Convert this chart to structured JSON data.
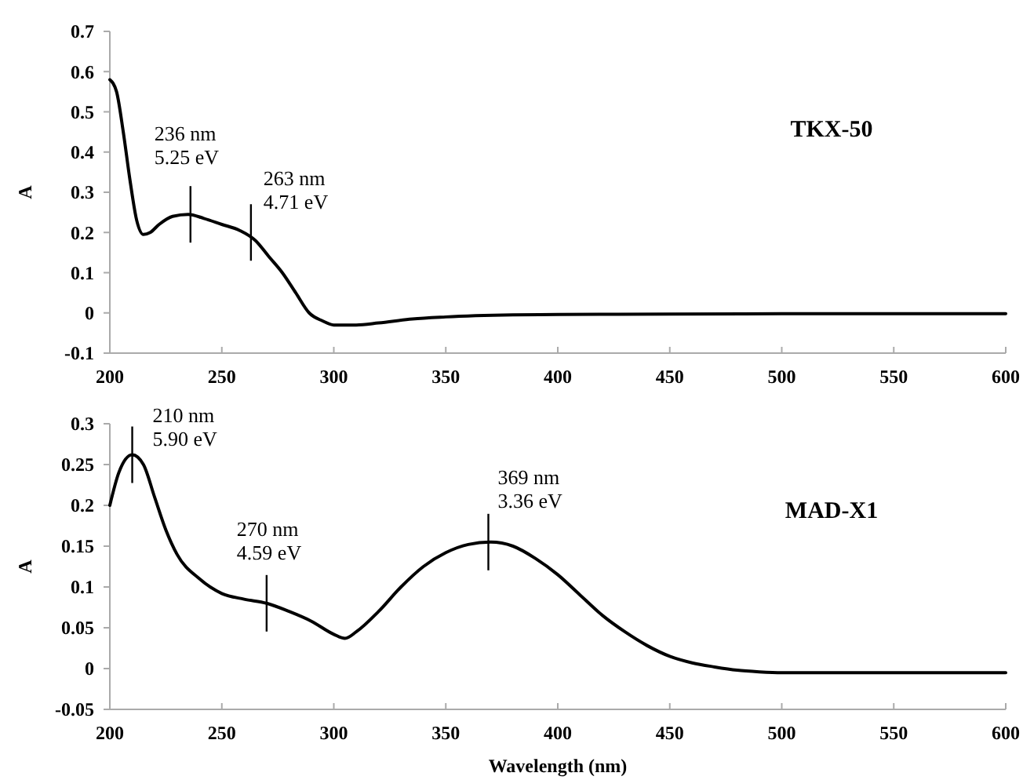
{
  "chart_data": [
    {
      "type": "line",
      "title": "TKX-50",
      "ylabel": "A",
      "xlim": [
        200,
        600
      ],
      "xticks": [
        200,
        250,
        300,
        350,
        400,
        450,
        500,
        550,
        600
      ],
      "ylim": [
        -0.1,
        0.7
      ],
      "yticks": [
        -0.1,
        0,
        0.1,
        0.2,
        0.3,
        0.4,
        0.5,
        0.6,
        0.7
      ],
      "grid": false,
      "marker": "none",
      "line_style": "solid",
      "series": [
        {
          "color": "#000000",
          "x": [
            200,
            203,
            206,
            209,
            212,
            215,
            218,
            222,
            228,
            235,
            242,
            250,
            258,
            265,
            271,
            277,
            283,
            289,
            295,
            300,
            310,
            320,
            335,
            350,
            380,
            400,
            450,
            500,
            550,
            600
          ],
          "values": [
            0.58,
            0.55,
            0.45,
            0.33,
            0.23,
            0.195,
            0.2,
            0.22,
            0.24,
            0.245,
            0.235,
            0.22,
            0.205,
            0.18,
            0.14,
            0.1,
            0.05,
            0,
            -0.02,
            -0.03,
            -0.03,
            -0.025,
            -0.015,
            -0.01,
            -0.005,
            -0.004,
            -0.003,
            -0.002,
            -0.002,
            -0.002
          ]
        }
      ],
      "annotations": [
        {
          "text": "236 nm\n5.25 eV",
          "x": 236,
          "y": 0.245
        },
        {
          "text": "263 nm\n4.71 eV",
          "x": 263,
          "y": 0.2
        }
      ]
    },
    {
      "type": "line",
      "title": "MAD-X1",
      "xlabel": "Wavelength (nm)",
      "ylabel": "A",
      "xlim": [
        200,
        600
      ],
      "xticks": [
        200,
        250,
        300,
        350,
        400,
        450,
        500,
        550,
        600
      ],
      "ylim": [
        -0.05,
        0.3
      ],
      "yticks": [
        -0.05,
        0,
        0.05,
        0.1,
        0.15,
        0.2,
        0.25,
        0.3
      ],
      "grid": false,
      "marker": "none",
      "line_style": "solid",
      "series": [
        {
          "color": "#000000",
          "x": [
            200,
            204,
            210,
            215,
            220,
            225,
            230,
            240,
            250,
            260,
            270,
            280,
            290,
            300,
            305,
            310,
            320,
            330,
            340,
            350,
            360,
            370,
            380,
            390,
            400,
            410,
            420,
            430,
            440,
            450,
            460,
            470,
            480,
            490,
            500,
            550,
            600
          ],
          "values": [
            0.2,
            0.24,
            0.262,
            0.25,
            0.21,
            0.17,
            0.14,
            0.11,
            0.092,
            0.085,
            0.08,
            0.07,
            0.058,
            0.042,
            0.037,
            0.045,
            0.07,
            0.1,
            0.125,
            0.142,
            0.152,
            0.155,
            0.15,
            0.135,
            0.115,
            0.09,
            0.065,
            0.045,
            0.028,
            0.015,
            0.007,
            0.002,
            -0.002,
            -0.004,
            -0.005,
            -0.005,
            -0.005
          ]
        }
      ],
      "annotations": [
        {
          "text": "210 nm\n5.90 eV",
          "x": 210,
          "y": 0.262
        },
        {
          "text": "270 nm\n4.59 eV",
          "x": 270,
          "y": 0.08
        },
        {
          "text": "369 nm\n3.36 eV",
          "x": 369,
          "y": 0.155
        }
      ]
    }
  ]
}
